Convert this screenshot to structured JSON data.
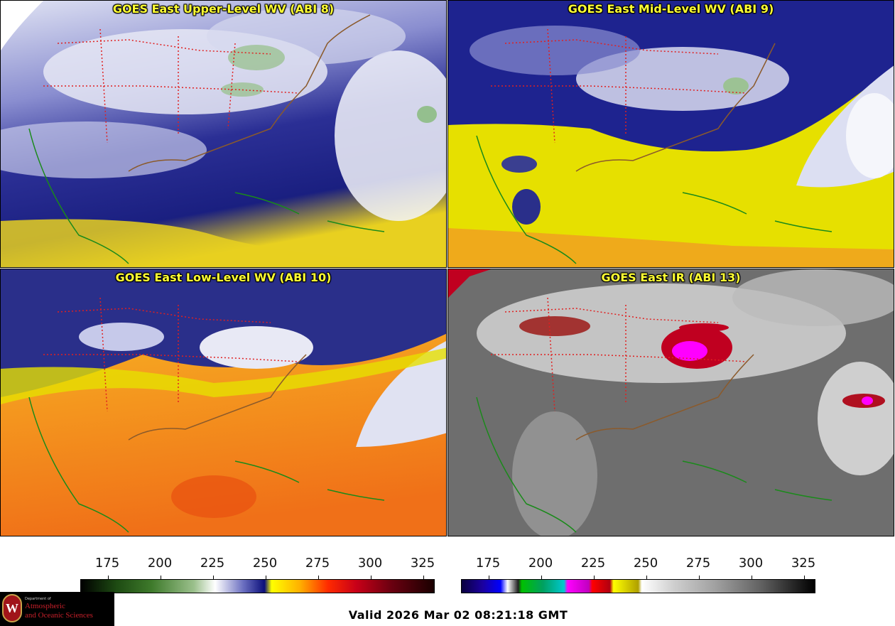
{
  "panels": [
    {
      "title": "GOES East Upper-Level WV (ABI 8)",
      "style": "wv-upper"
    },
    {
      "title": "GOES East Mid-Level WV (ABI 9)",
      "style": "wv-mid"
    },
    {
      "title": "GOES East Low-Level WV (ABI 10)",
      "style": "wv-low"
    },
    {
      "title": "GOES East IR (ABI 13)",
      "style": "ir"
    }
  ],
  "colorbars": {
    "left": {
      "ticks": [
        "175",
        "200",
        "225",
        "250",
        "275",
        "300",
        "325"
      ],
      "range": [
        163,
        330
      ]
    },
    "right": {
      "ticks": [
        "175",
        "200",
        "225",
        "250",
        "275",
        "300",
        "325"
      ],
      "range": [
        163,
        330
      ]
    }
  },
  "logo": {
    "department": "Department of",
    "line1": "Atmospheric",
    "line2": "and Oceanic Sciences",
    "seal_text": "W"
  },
  "valid_time": "Valid 2026 Mar 02 08:21:18 GMT",
  "colors": {
    "title": "#ffff33",
    "coastline": "#1a8a1a",
    "state_border": "#e02020",
    "country_border": "#8b5a2b"
  }
}
